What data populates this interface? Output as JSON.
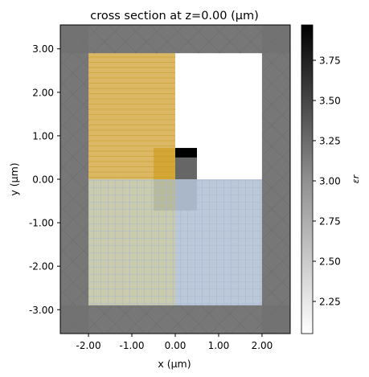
{
  "chart_data": {
    "type": "heatmap",
    "title": "cross section at z=0.00 (μm)",
    "xlabel": "x (μm)",
    "ylabel": "y (μm)",
    "xlim": [
      -2.65,
      2.65
    ],
    "ylim": [
      -3.55,
      3.55
    ],
    "x_ticks": [
      -2,
      -1,
      0,
      1,
      2
    ],
    "x_tick_labels": [
      "-2.00",
      "-1.00",
      "0.00",
      "1.00",
      "2.00"
    ],
    "y_ticks": [
      3,
      2,
      1,
      0,
      -1,
      -2,
      -3
    ],
    "y_tick_labels": [
      "3.00",
      "2.00",
      "1.00",
      "0.00",
      "-1.00",
      "-2.00",
      "-3.00"
    ],
    "colorbar": {
      "label": "εr",
      "range": [
        2.05,
        3.97
      ],
      "ticks": [
        2.25,
        2.5,
        2.75,
        3.0,
        3.25,
        3.5,
        3.75
      ],
      "tick_labels": [
        "2.25",
        "2.50",
        "2.75",
        "3.00",
        "3.25",
        "3.50",
        "3.75"
      ],
      "color_low": "#ffffff",
      "color_high": "#000000"
    },
    "permittivity_regions": [
      {
        "name": "background",
        "x": [
          -2.65,
          2.65
        ],
        "y": [
          -3.55,
          3.55
        ],
        "eps": 3.0
      },
      {
        "name": "block",
        "x": [
          -2.0,
          2.0
        ],
        "y": [
          -2.9,
          2.9
        ],
        "eps": 2.75
      },
      {
        "name": "upper-right-region",
        "x": [
          0.0,
          2.0
        ],
        "y": [
          0.0,
          2.9
        ],
        "eps": 2.05
      },
      {
        "name": "small-dark-block",
        "x": [
          0.0,
          0.5
        ],
        "y": [
          0.5,
          0.72
        ],
        "eps": 3.97
      },
      {
        "name": "small-medium-block",
        "x": [
          0.0,
          0.5
        ],
        "y": [
          0.0,
          0.5
        ],
        "eps": 3.2
      },
      {
        "name": "small-lower-block",
        "x": [
          -0.5,
          0.5
        ],
        "y": [
          -0.72,
          0.0
        ],
        "eps": 3.2
      },
      {
        "name": "small-left-block",
        "x": [
          -0.5,
          0.0
        ],
        "y": [
          0.0,
          0.72
        ],
        "eps": 3.2
      }
    ],
    "overlays": [
      {
        "name": "source-region",
        "color": "#f2c14e",
        "x": [
          -2.0,
          0.0
        ],
        "y": [
          0.0,
          2.9
        ],
        "pattern": "horizontal-lines"
      },
      {
        "name": "monitor-region",
        "color": "#c5d7f0",
        "x": [
          0.0,
          2.0
        ],
        "y": [
          -2.9,
          0.0
        ],
        "pattern": "grid"
      },
      {
        "name": "overlap-region",
        "color": "#dadbb0",
        "x": [
          -2.0,
          0.0
        ],
        "y": [
          -2.9,
          0.0
        ],
        "pattern": "grid"
      },
      {
        "name": "small-source",
        "color": "#d9a522",
        "x": [
          -0.5,
          0.0
        ],
        "y": [
          0.0,
          0.72
        ],
        "pattern": "horizontal-lines"
      }
    ],
    "boundary_layers": [
      {
        "side": "left",
        "x": [
          -2.65,
          -2.0
        ],
        "y": [
          -3.55,
          3.55
        ],
        "pattern": "cross-hatch"
      },
      {
        "side": "right",
        "x": [
          2.0,
          2.65
        ],
        "y": [
          -3.55,
          3.55
        ],
        "pattern": "cross-hatch"
      },
      {
        "side": "top",
        "x": [
          -2.65,
          2.65
        ],
        "y": [
          2.9,
          3.55
        ],
        "pattern": "cross-hatch"
      },
      {
        "side": "bottom",
        "x": [
          -2.65,
          2.65
        ],
        "y": [
          -3.55,
          -2.9
        ],
        "pattern": "cross-hatch"
      }
    ]
  }
}
